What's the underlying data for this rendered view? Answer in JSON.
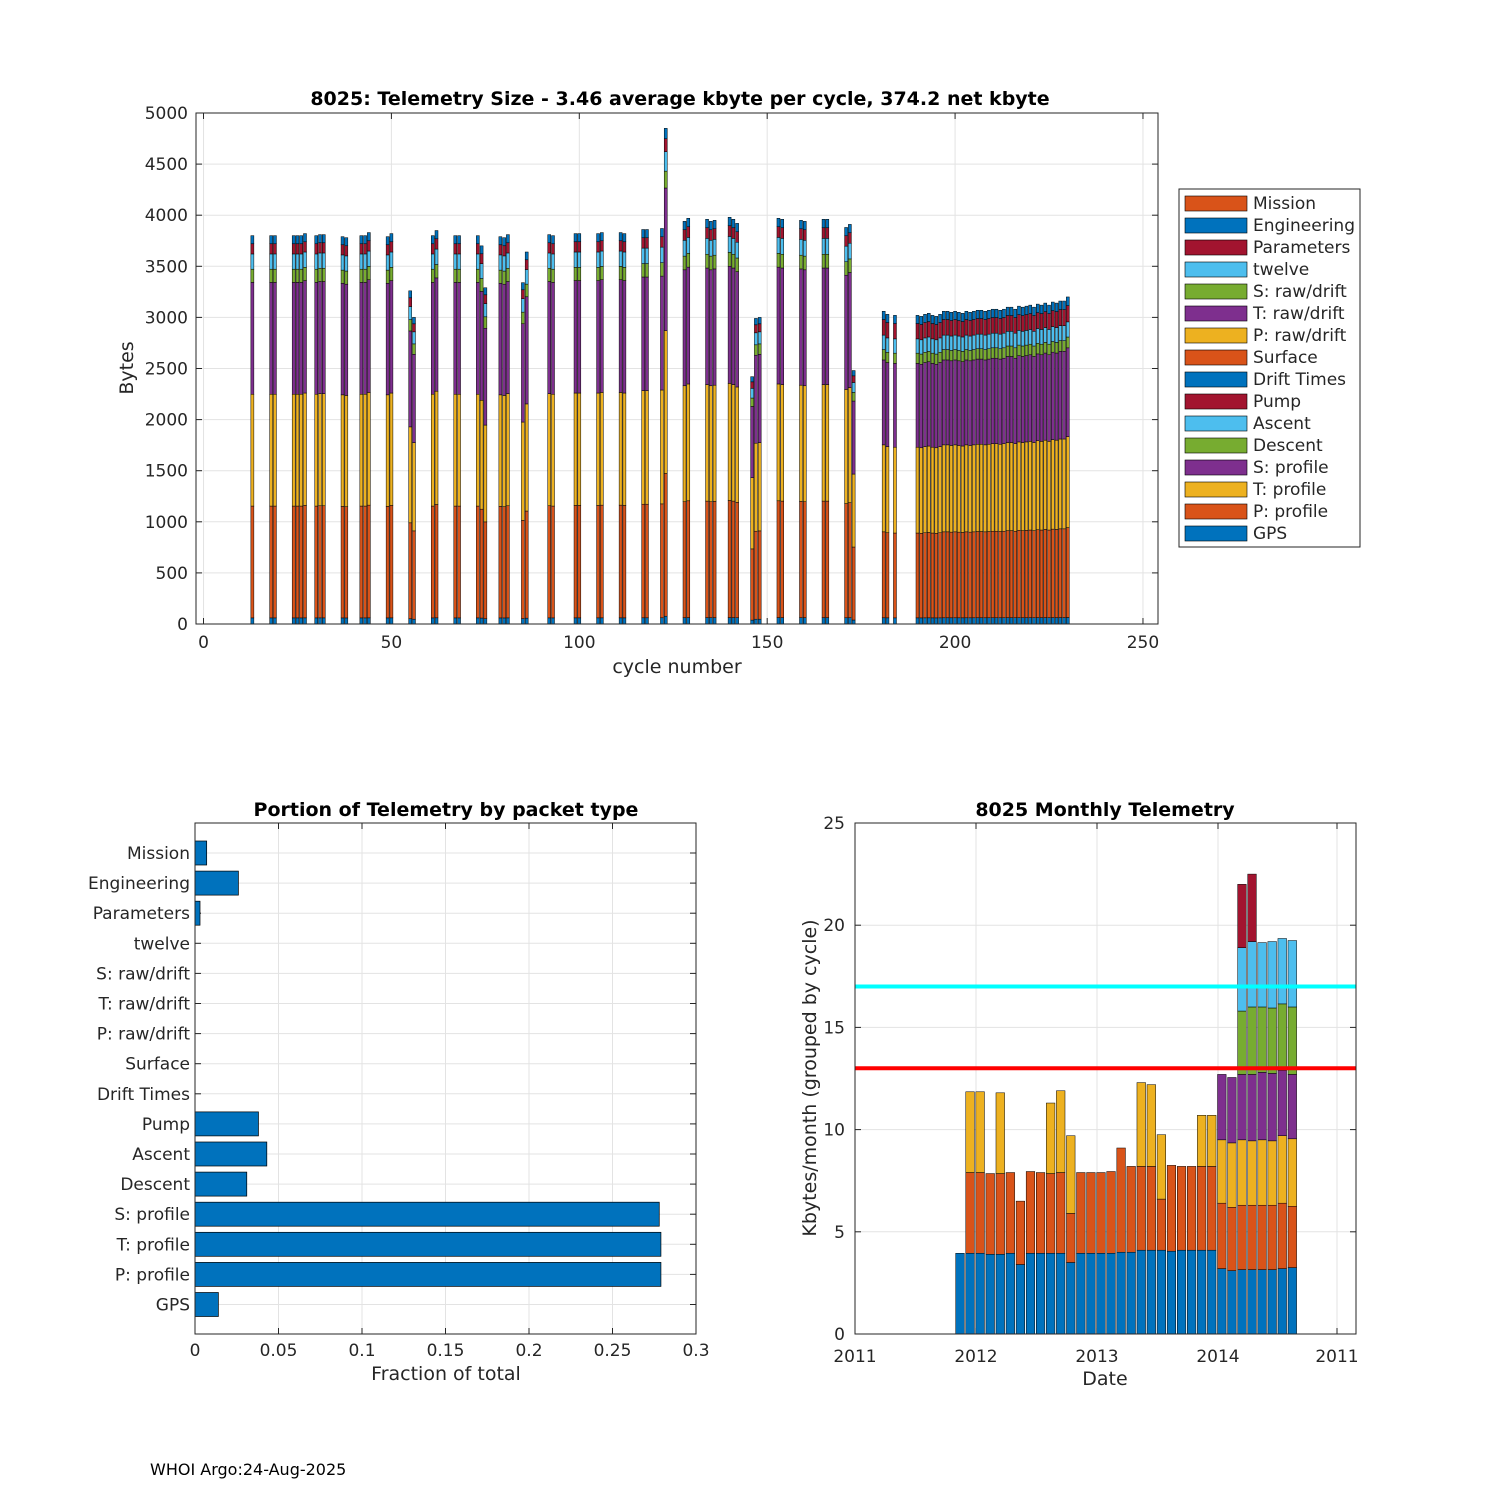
{
  "footer": "WHOI Argo:24-Aug-2025",
  "colors": {
    "blue": "#0072BD",
    "orange": "#D95319",
    "yellow": "#EDB120",
    "purple": "#7E2F8E",
    "green": "#77AC30",
    "cyan": "#4DBEEE",
    "red": "#A2142F",
    "line_cyan": "#00FFFF",
    "line_red": "#FF0000"
  },
  "chart_data": [
    {
      "type": "bar",
      "stacked": true,
      "title": "8025: Telemetry Size - 3.46 average kbyte per cycle,  374.2 net kbyte",
      "xlabel": "cycle number",
      "ylabel": "Bytes",
      "xlim": [
        -2,
        254
      ],
      "ylim": [
        0,
        5000
      ],
      "xticks": [
        "0",
        "50",
        "100",
        "150",
        "200",
        "250"
      ],
      "yticks": [
        "0",
        "500",
        "1000",
        "1500",
        "2000",
        "2500",
        "3000",
        "3500",
        "4000",
        "4500",
        "5000"
      ],
      "legend": [
        "Mission",
        "Engineering",
        "Parameters",
        "twelve",
        "S: raw/drift",
        "T: raw/drift",
        "P: raw/drift",
        "Surface",
        "Drift Times",
        "Pump",
        "Ascent",
        "Descent",
        "S: profile",
        "T: profile",
        "P: profile",
        "GPS"
      ],
      "legend_position": "right",
      "stack_order_bottom_to_top": [
        "GPS",
        "P: profile",
        "T: profile",
        "S: profile",
        "Descent",
        "Ascent",
        "Pump",
        "Engineering"
      ],
      "typical_cycle_bytes": {
        "GPS": 60,
        "P: profile": 1100,
        "T: profile": 1100,
        "S: profile": 1100,
        "Descent": 130,
        "Ascent": 150,
        "Pump": 100,
        "Engineering": 80
      },
      "late_cycle_bytes": {
        "GPS": 60,
        "P: profile": 830,
        "T: profile": 840,
        "S: profile": 820,
        "Descent": 100,
        "Ascent": 140,
        "Pump": 150,
        "Engineering": 80
      },
      "cycles": [
        13,
        18,
        19,
        24,
        25,
        26,
        27,
        30,
        31,
        32,
        37,
        38,
        42,
        43,
        44,
        49,
        50,
        55,
        56,
        61,
        62,
        67,
        68,
        73,
        74,
        75,
        79,
        80,
        81,
        85,
        86,
        92,
        93,
        99,
        100,
        105,
        106,
        111,
        112,
        117,
        118,
        122,
        123,
        128,
        129,
        134,
        135,
        136,
        140,
        141,
        142,
        146,
        147,
        148,
        153,
        154,
        159,
        160,
        165,
        166,
        171,
        172,
        173,
        181,
        182,
        184,
        190,
        191,
        192,
        193,
        194,
        195,
        196,
        197,
        198,
        199,
        200,
        201,
        202,
        203,
        204,
        205,
        206,
        207,
        208,
        209,
        210,
        211,
        212,
        213,
        214,
        215,
        216,
        217,
        218,
        219,
        220,
        221,
        222,
        223,
        224,
        225,
        226,
        227,
        228,
        229,
        230
      ],
      "totals": [
        3800,
        3800,
        3800,
        3800,
        3800,
        3800,
        3820,
        3800,
        3810,
        3810,
        3790,
        3780,
        3800,
        3800,
        3830,
        3790,
        3820,
        3260,
        3000,
        3800,
        3850,
        3800,
        3800,
        3800,
        3700,
        3290,
        3790,
        3780,
        3810,
        3340,
        3640,
        3810,
        3800,
        3820,
        3820,
        3820,
        3830,
        3830,
        3820,
        3860,
        3860,
        3870,
        4850,
        3940,
        3970,
        3960,
        3940,
        3950,
        3980,
        3960,
        3920,
        2420,
        2990,
        3000,
        3970,
        3960,
        3950,
        3940,
        3960,
        3960,
        3880,
        3910,
        2480,
        3060,
        3030,
        3020,
        3020,
        3010,
        3030,
        3040,
        3020,
        3010,
        3030,
        3060,
        3060,
        3050,
        3060,
        3050,
        3040,
        3060,
        3050,
        3060,
        3070,
        3070,
        3060,
        3070,
        3080,
        3080,
        3070,
        3080,
        3100,
        3100,
        3080,
        3110,
        3100,
        3110,
        3120,
        3100,
        3130,
        3120,
        3140,
        3120,
        3150,
        3140,
        3160,
        3160,
        3200
      ]
    },
    {
      "type": "bar",
      "orientation": "horizontal",
      "title": "Portion of Telemetry by packet type",
      "xlabel": "Fraction of total",
      "xlim": [
        0,
        0.3
      ],
      "xticks": [
        "0",
        "0.05",
        "0.1",
        "0.15",
        "0.2",
        "0.25",
        "0.3"
      ],
      "categories": [
        "Mission",
        "Engineering",
        "Parameters",
        "twelve",
        "S: raw/drift",
        "T: raw/drift",
        "P: raw/drift",
        "Surface",
        "Drift Times",
        "Pump",
        "Ascent",
        "Descent",
        "S: profile",
        "T: profile",
        "P: profile",
        "GPS"
      ],
      "values": [
        0.007,
        0.026,
        0.003,
        0,
        0,
        0,
        0,
        0,
        0,
        0.038,
        0.043,
        0.031,
        0.278,
        0.279,
        0.279,
        0.014
      ]
    },
    {
      "type": "bar",
      "stacked": true,
      "title": "8025 Monthly Telemetry",
      "xlabel": "Date",
      "ylabel": "Kbytes/month (grouped by cycle)",
      "ylim": [
        0,
        25
      ],
      "xticks": [
        "2011",
        "2012",
        "2013",
        "2014",
        "2011"
      ],
      "yticks": [
        "0",
        "5",
        "10",
        "15",
        "20",
        "25"
      ],
      "reference_lines": [
        {
          "value": 17,
          "color": "cyan"
        },
        {
          "value": 13,
          "color": "red"
        }
      ],
      "months": [
        "2011-11",
        "2011-12",
        "2012-01",
        "2012-02",
        "2012-03",
        "2012-04",
        "2012-05",
        "2012-06",
        "2012-07",
        "2012-08",
        "2012-09",
        "2012-10",
        "2012-11",
        "2012-12",
        "2013-01",
        "2013-02",
        "2013-03",
        "2013-04",
        "2013-05",
        "2013-06",
        "2013-07",
        "2013-08",
        "2013-09",
        "2013-10",
        "2013-11",
        "2013-12",
        "2014-01",
        "2014-02",
        "2014-03",
        "2014-04",
        "2014-05",
        "2014-06",
        "2014-07",
        "2014-08",
        "2014-09"
      ],
      "series": [
        {
          "name": "blue",
          "values": [
            3.95,
            3.95,
            3.95,
            3.9,
            3.9,
            3.95,
            3.4,
            3.95,
            3.95,
            3.95,
            3.95,
            3.5,
            3.95,
            3.95,
            3.95,
            3.95,
            4.0,
            4.0,
            4.1,
            4.1,
            4.1,
            4.05,
            4.1,
            4.1,
            4.1,
            4.1,
            3.2,
            3.1,
            3.15,
            3.15,
            3.15,
            3.15,
            3.2,
            3.25,
            0
          ]
        },
        {
          "name": "orange",
          "values": [
            0,
            3.95,
            3.95,
            3.95,
            3.95,
            3.95,
            3.1,
            4.0,
            3.95,
            3.9,
            3.95,
            2.4,
            3.95,
            3.95,
            3.95,
            4.0,
            5.1,
            4.2,
            4.1,
            4.1,
            2.5,
            4.2,
            4.1,
            4.1,
            4.1,
            4.1,
            3.2,
            3.1,
            3.15,
            3.15,
            3.15,
            3.15,
            3.2,
            3.0,
            0
          ]
        },
        {
          "name": "yellow",
          "values": [
            0,
            3.95,
            3.95,
            0,
            3.95,
            0,
            0,
            0,
            0,
            3.45,
            4.0,
            3.8,
            0,
            0,
            0,
            0,
            0,
            0,
            4.1,
            4.0,
            3.15,
            0,
            0,
            0,
            2.5,
            2.5,
            3.1,
            3.15,
            3.2,
            3.15,
            3.2,
            3.15,
            3.3,
            3.3,
            0
          ]
        },
        {
          "name": "purple",
          "values": [
            0,
            0,
            0,
            0,
            0,
            0,
            0,
            0,
            0,
            0,
            0,
            0,
            0,
            0,
            0,
            0,
            0,
            0,
            0,
            0,
            0,
            0,
            0,
            0,
            0,
            0,
            3.2,
            3.2,
            3.2,
            3.25,
            3.3,
            3.3,
            3.2,
            3.15,
            0
          ]
        },
        {
          "name": "green",
          "values": [
            0,
            0,
            0,
            0,
            0,
            0,
            0,
            0,
            0,
            0,
            0,
            0,
            0,
            0,
            0,
            0,
            0,
            0,
            0,
            0,
            0,
            0,
            0,
            0,
            0,
            0,
            0,
            0,
            3.1,
            3.3,
            3.2,
            3.2,
            3.25,
            3.3,
            0
          ]
        },
        {
          "name": "lightblue",
          "values": [
            0,
            0,
            0,
            0,
            0,
            0,
            0,
            0,
            0,
            0,
            0,
            0,
            0,
            0,
            0,
            0,
            0,
            0,
            0,
            0,
            0,
            0,
            0,
            0,
            0,
            0,
            0,
            0,
            3.1,
            3.2,
            3.15,
            3.25,
            3.2,
            3.25,
            0
          ]
        },
        {
          "name": "red",
          "values": [
            0,
            0,
            0,
            0,
            0,
            0,
            0,
            0,
            0,
            0,
            0,
            0,
            0,
            0,
            0,
            0,
            0,
            0,
            0,
            0,
            0,
            0,
            0,
            0,
            0,
            0,
            0,
            0,
            3.1,
            3.3,
            0,
            0,
            0,
            0,
            0
          ]
        }
      ]
    }
  ]
}
